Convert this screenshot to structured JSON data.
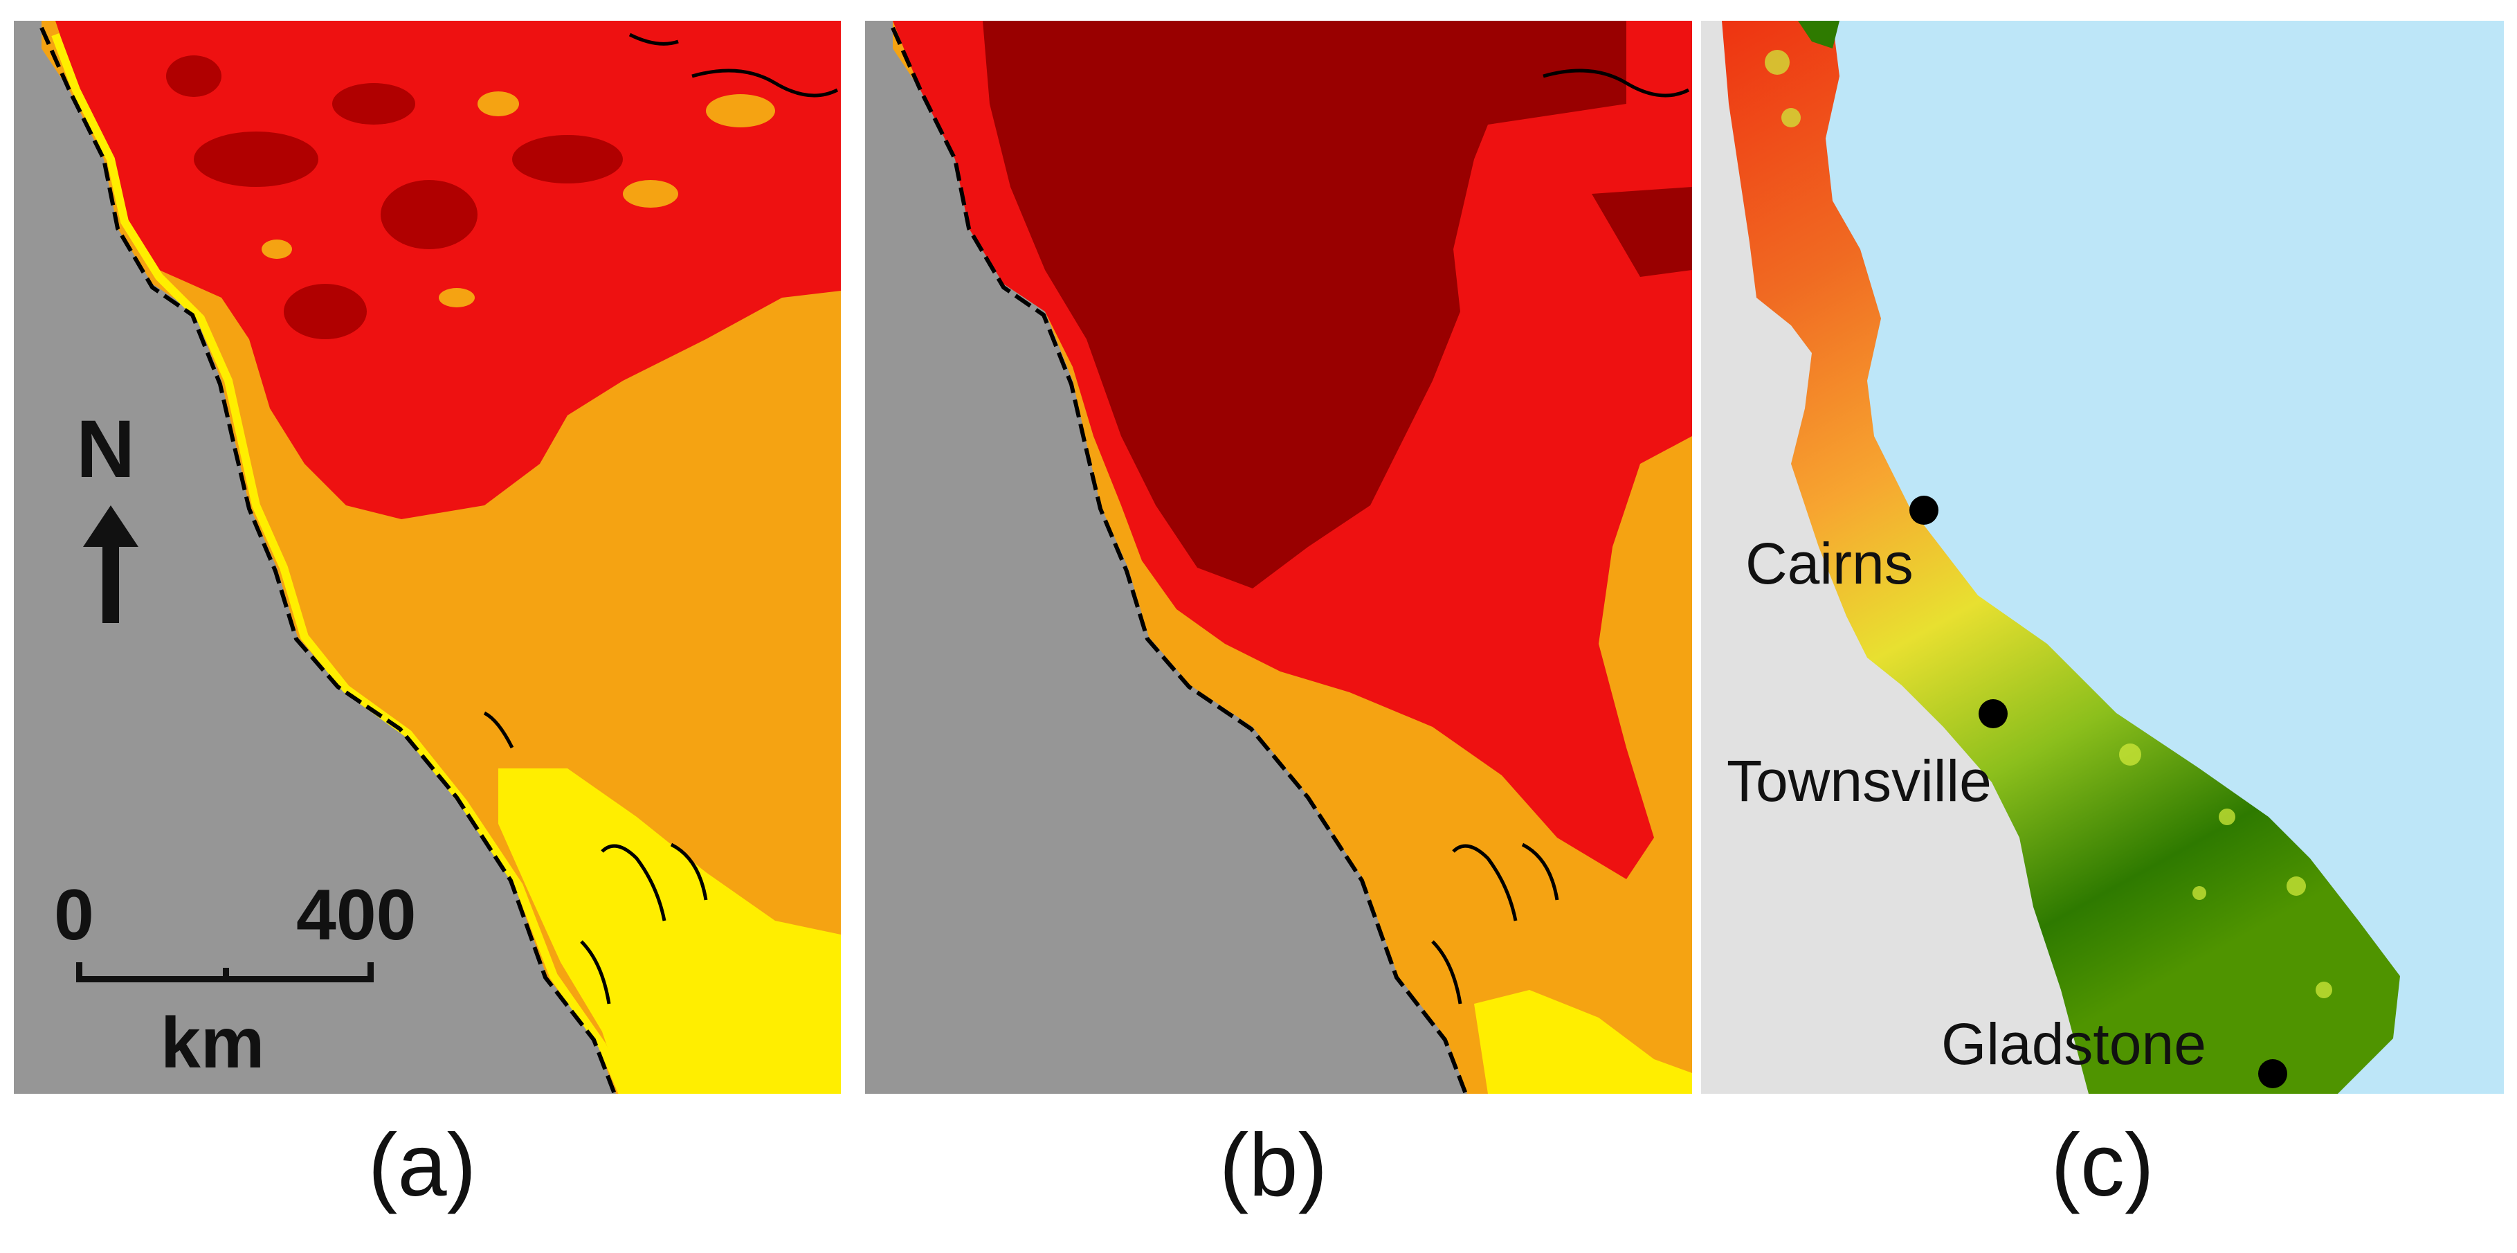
{
  "captions": {
    "a": "(a)",
    "b": "(b)",
    "c": "(c)"
  },
  "north_arrow": {
    "label": "N"
  },
  "scale_bar": {
    "start": "0",
    "end": "400",
    "unit": "km"
  },
  "cities": [
    {
      "name": "Cairns"
    },
    {
      "name": "Townsville"
    },
    {
      "name": "Gladstone"
    }
  ],
  "colors": {
    "land_dark": "#969696",
    "land_light": "#e1e1e1",
    "ocean": "#bde6f8",
    "dark_red": "#990000",
    "red": "#ee1111",
    "orange": "#f5a312",
    "yellow": "#ffee00",
    "green_dark": "#2e7a00",
    "green_light": "#a8cc22"
  }
}
